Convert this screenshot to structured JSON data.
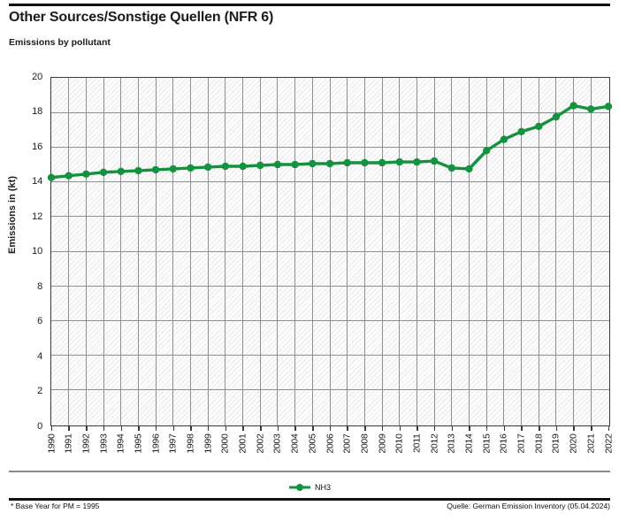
{
  "header": {
    "title": "Other Sources/Sonstige Quellen (NFR 6)",
    "subtitle": "Emissions by pollutant"
  },
  "chart_data": {
    "type": "line",
    "title": "Other Sources/Sonstige Quellen (NFR 6)",
    "subtitle": "Emissions by pollutant",
    "xlabel": "",
    "ylabel": "Emissions in (kt)",
    "ylim": [
      0,
      20
    ],
    "ytick_step": 2,
    "grid": true,
    "hatch_background": true,
    "legend_position": "bottom",
    "line_color": "#149240",
    "categories": [
      "1990",
      "1991",
      "1992",
      "1993",
      "1994",
      "1995",
      "1996",
      "1997",
      "1998",
      "1999",
      "2000",
      "2001",
      "2002",
      "2003",
      "2004",
      "2005",
      "2006",
      "2007",
      "2008",
      "2009",
      "2010",
      "2011",
      "2012",
      "2013",
      "2014",
      "2015",
      "2016",
      "2017",
      "2018",
      "2019",
      "2020",
      "2021",
      "2022"
    ],
    "series": [
      {
        "name": "NH3",
        "color": "#149240",
        "values": [
          14.25,
          14.35,
          14.45,
          14.55,
          14.6,
          14.65,
          14.7,
          14.75,
          14.8,
          14.85,
          14.9,
          14.9,
          14.95,
          15.0,
          15.0,
          15.05,
          15.05,
          15.1,
          15.1,
          15.1,
          15.15,
          15.15,
          15.2,
          14.8,
          14.75,
          15.8,
          16.45,
          16.9,
          17.2,
          17.75,
          18.4,
          18.2,
          18.35
        ]
      }
    ]
  },
  "footer": {
    "left": "* Base Year for PM = 1995",
    "right": "Quelle: German Emission Inventory (05.04.2024)"
  }
}
